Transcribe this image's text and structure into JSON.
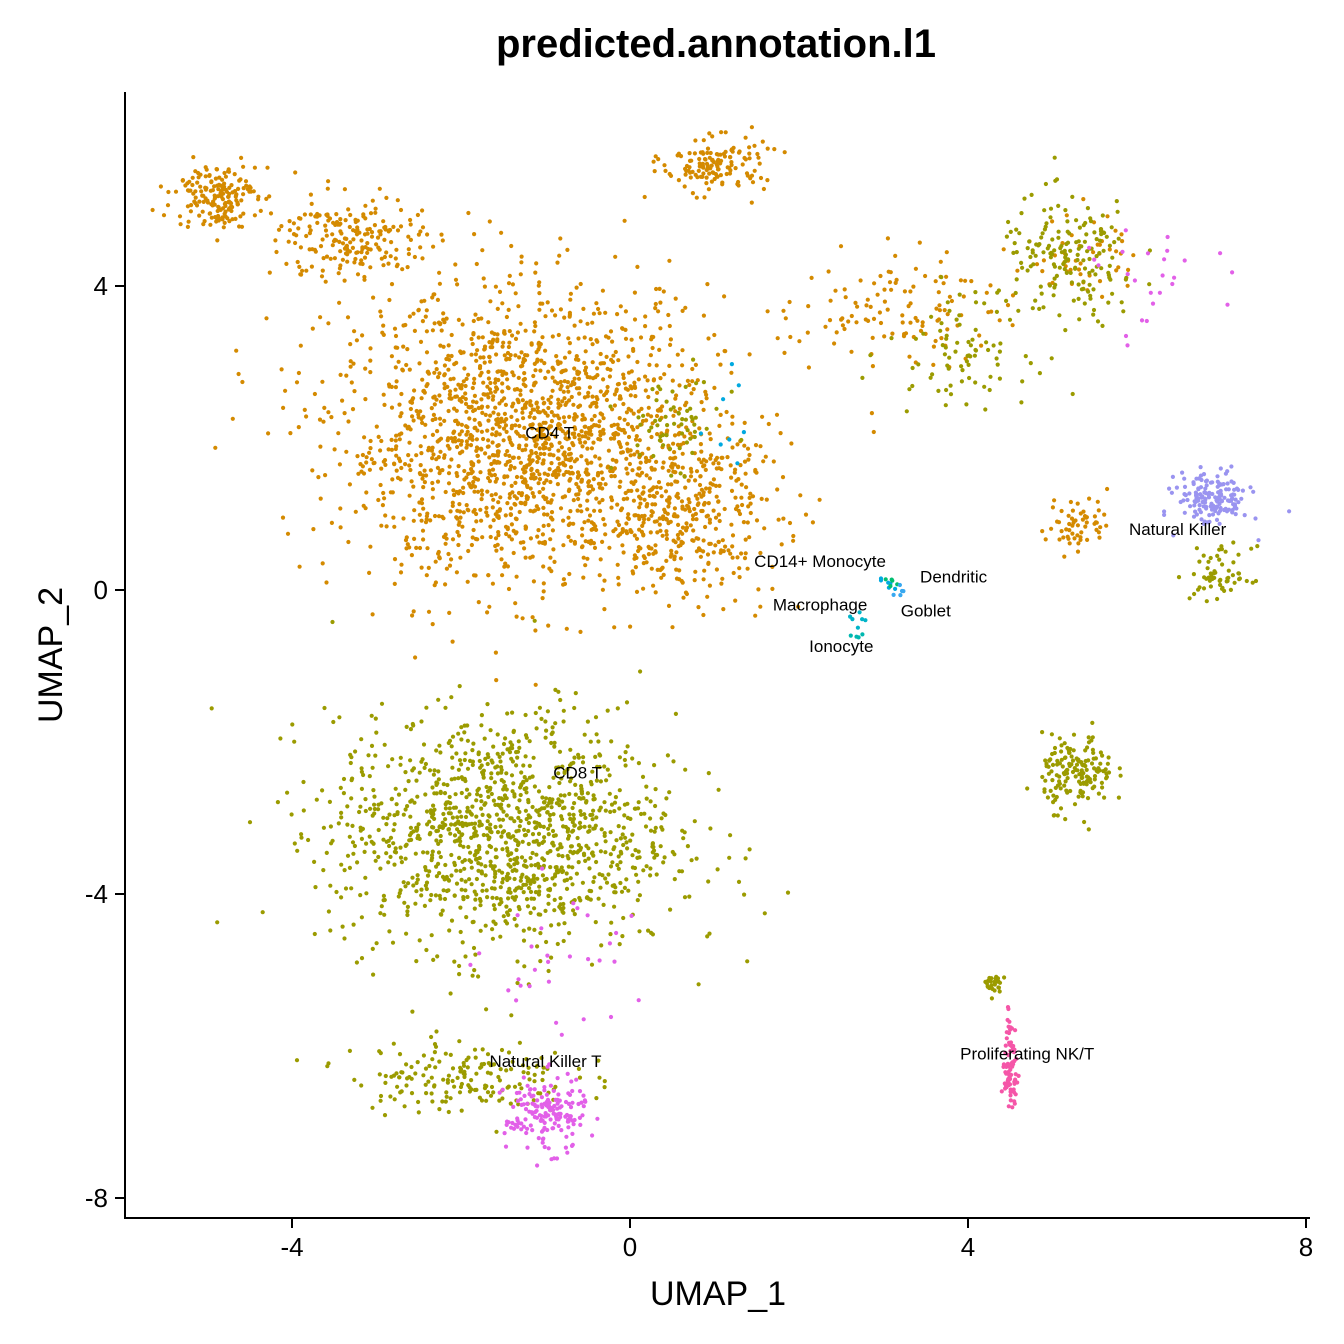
{
  "chart_data": {
    "type": "scatter",
    "title": "predicted.annotation.l1",
    "xlabel": "UMAP_1",
    "ylabel": "UMAP_2",
    "xlim": [
      -6.0,
      8.0
    ],
    "ylim": [
      -8.3,
      6.6
    ],
    "x_ticks": [
      {
        "value": -4,
        "label": "-4"
      },
      {
        "value": 0,
        "label": "0"
      },
      {
        "value": 4,
        "label": "4"
      },
      {
        "value": 8,
        "label": "8"
      }
    ],
    "y_ticks": [
      {
        "value": -8,
        "label": "-8"
      },
      {
        "value": -4,
        "label": "-4"
      },
      {
        "value": 0,
        "label": "0"
      },
      {
        "value": 4,
        "label": "4"
      }
    ],
    "grid": false,
    "legend": "none",
    "series": [
      {
        "name": "CD4 T",
        "color": "#D48A00"
      },
      {
        "name": "CD8 T",
        "color": "#9B9B00"
      },
      {
        "name": "Natural Killer",
        "color": "#9A94F0"
      },
      {
        "name": "Natural Killer T",
        "color": "#E260E8"
      },
      {
        "name": "Proliferating NK/T",
        "color": "#F556A8"
      },
      {
        "name": "CD14+ Monocyte",
        "color": "#00A9E0"
      },
      {
        "name": "Dendritic",
        "color": "#00BE70"
      },
      {
        "name": "Macrophage",
        "color": "#00B4C8"
      },
      {
        "name": "Goblet",
        "color": "#38A8F0"
      },
      {
        "name": "Ionocyte",
        "color": "#00B8B0"
      }
    ],
    "clusters": [
      {
        "series": "CD4 T",
        "blobs": [
          {
            "x": -1.2,
            "y": 2.0,
            "sx": 1.9,
            "sy": 1.6,
            "n": 1800
          },
          {
            "x": -4.9,
            "y": 5.2,
            "sx": 0.4,
            "sy": 0.35,
            "n": 180
          },
          {
            "x": -3.3,
            "y": 4.6,
            "sx": 0.7,
            "sy": 0.5,
            "n": 200
          },
          {
            "x": 1.0,
            "y": 5.6,
            "sx": 0.5,
            "sy": 0.3,
            "n": 140
          },
          {
            "x": 0.6,
            "y": 1.0,
            "sx": 1.0,
            "sy": 0.9,
            "n": 350
          },
          {
            "x": 3.2,
            "y": 3.7,
            "sx": 1.0,
            "sy": 0.6,
            "n": 120
          },
          {
            "x": 5.3,
            "y": 0.9,
            "sx": 0.3,
            "sy": 0.3,
            "n": 60
          },
          {
            "x": 5.4,
            "y": 4.4,
            "sx": 0.5,
            "sy": 0.5,
            "n": 50
          }
        ]
      },
      {
        "series": "CD8 T",
        "blobs": [
          {
            "x": -1.5,
            "y": -3.2,
            "sx": 1.7,
            "sy": 1.3,
            "n": 1300
          },
          {
            "x": -2.0,
            "y": -6.4,
            "sx": 1.1,
            "sy": 0.4,
            "n": 180
          },
          {
            "x": 5.3,
            "y": -2.4,
            "sx": 0.35,
            "sy": 0.4,
            "n": 160
          },
          {
            "x": 5.2,
            "y": 4.3,
            "sx": 0.7,
            "sy": 0.7,
            "n": 170
          },
          {
            "x": 3.9,
            "y": 3.2,
            "sx": 0.7,
            "sy": 0.6,
            "n": 80
          },
          {
            "x": 7.0,
            "y": 0.2,
            "sx": 0.3,
            "sy": 0.3,
            "n": 60
          },
          {
            "x": 0.5,
            "y": 2.2,
            "sx": 0.5,
            "sy": 0.5,
            "n": 60
          },
          {
            "x": 4.3,
            "y": -5.2,
            "sx": 0.12,
            "sy": 0.12,
            "n": 25
          }
        ]
      },
      {
        "series": "Natural Killer",
        "blobs": [
          {
            "x": 6.9,
            "y": 1.2,
            "sx": 0.35,
            "sy": 0.3,
            "n": 160
          }
        ]
      },
      {
        "series": "Natural Killer T",
        "blobs": [
          {
            "x": -1.0,
            "y": -6.9,
            "sx": 0.4,
            "sy": 0.4,
            "n": 170
          },
          {
            "x": -0.8,
            "y": -5.0,
            "sx": 0.8,
            "sy": 0.9,
            "n": 30
          },
          {
            "x": 6.2,
            "y": 4.0,
            "sx": 0.6,
            "sy": 0.6,
            "n": 25
          }
        ]
      },
      {
        "series": "Proliferating NK/T",
        "blobs": [
          {
            "x": 4.5,
            "y": -6.4,
            "sx": 0.08,
            "sy": 0.3,
            "n": 60
          },
          {
            "x": 4.5,
            "y": -5.8,
            "sx": 0.05,
            "sy": 0.3,
            "n": 20
          }
        ]
      },
      {
        "series": "CD14+ Monocyte",
        "blobs": [
          {
            "x": 3.0,
            "y": 0.1,
            "sx": 0.1,
            "sy": 0.1,
            "n": 6
          },
          {
            "x": 1.3,
            "y": 2.3,
            "sx": 0.3,
            "sy": 0.6,
            "n": 8
          }
        ]
      },
      {
        "series": "Dendritic",
        "blobs": [
          {
            "x": 3.1,
            "y": 0.15,
            "sx": 0.1,
            "sy": 0.1,
            "n": 5
          }
        ]
      },
      {
        "series": "Macrophage",
        "blobs": [
          {
            "x": 2.7,
            "y": -0.4,
            "sx": 0.1,
            "sy": 0.15,
            "n": 6
          }
        ]
      },
      {
        "series": "Goblet",
        "blobs": [
          {
            "x": 3.2,
            "y": -0.05,
            "sx": 0.1,
            "sy": 0.1,
            "n": 5
          }
        ]
      },
      {
        "series": "Ionocyte",
        "blobs": [
          {
            "x": 2.65,
            "y": -0.6,
            "sx": 0.07,
            "sy": 0.07,
            "n": 4
          }
        ]
      }
    ],
    "cluster_labels": [
      {
        "text": "CD4 T",
        "x": -0.95,
        "y": 2.07
      },
      {
        "text": "CD8 T",
        "x": -0.62,
        "y": -2.4
      },
      {
        "text": "Natural Killer T",
        "x": -1.0,
        "y": -6.2
      },
      {
        "text": "Natural Killer",
        "x": 6.48,
        "y": 0.8
      },
      {
        "text": "CD14+ Monocyte",
        "x": 2.25,
        "y": 0.38
      },
      {
        "text": "Dendritic",
        "x": 3.83,
        "y": 0.18
      },
      {
        "text": "Macrophage",
        "x": 2.25,
        "y": -0.19
      },
      {
        "text": "Goblet",
        "x": 3.5,
        "y": -0.27
      },
      {
        "text": "Ionocyte",
        "x": 2.5,
        "y": -0.74
      },
      {
        "text": "Proliferating NK/T",
        "x": 4.7,
        "y": -6.1
      }
    ]
  }
}
